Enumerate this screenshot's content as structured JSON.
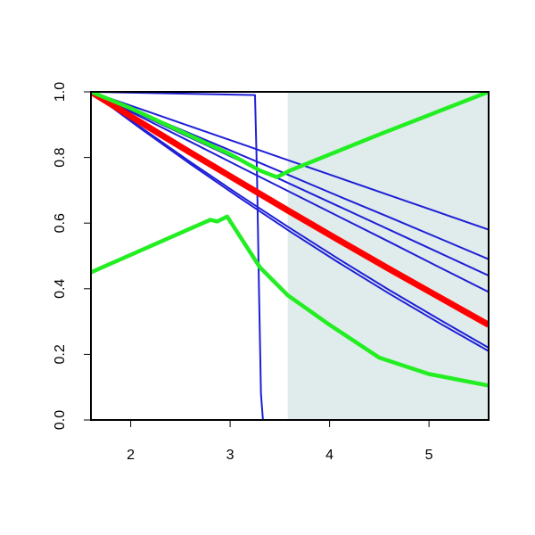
{
  "chart_data": {
    "type": "line",
    "xlim": [
      1.6,
      5.6
    ],
    "ylim": [
      0,
      1
    ],
    "xticks": [
      2,
      3,
      4,
      5
    ],
    "yticks": [
      {
        "value": 0,
        "label": "0.0"
      },
      0.2,
      0.4,
      0.6,
      0.8,
      {
        "value": 1,
        "label": "1.0"
      }
    ],
    "shaded_region": {
      "xlim": [
        3.58,
        5.6
      ],
      "color": "#dfeceb"
    },
    "series": [
      {
        "color": "#1f1fd6",
        "line_width": 2,
        "x": [
          1.6,
          2.1,
          2.6,
          3.1,
          3.6,
          4.1,
          4.6,
          5.1,
          5.6
        ],
        "values": [
          1,
          0.9475,
          0.895,
          0.8425,
          0.79,
          0.7375,
          0.685,
          0.6325,
          0.58
        ]
      },
      {
        "color": "#1f1fd6",
        "line_width": 2,
        "x": [
          1.6,
          2.1,
          2.6,
          3.1,
          3.6,
          4.1,
          4.6,
          5.1,
          5.6
        ],
        "values": [
          1,
          0.936,
          0.873,
          0.809,
          0.745,
          0.681,
          0.618,
          0.554,
          0.49
        ]
      },
      {
        "color": "#1f1fd6",
        "line_width": 2,
        "x": [
          1.6,
          2.1,
          2.6,
          3.1,
          3.6,
          4.1,
          4.6,
          5.1,
          5.6
        ],
        "values": [
          1,
          0.93,
          0.86,
          0.79,
          0.72,
          0.65,
          0.58,
          0.51,
          0.44
        ]
      },
      {
        "color": "#1f1fd6",
        "line_width": 2,
        "x": [
          1.6,
          2.1,
          2.6,
          3.1,
          3.6,
          4.1,
          4.6,
          5.1,
          5.6
        ],
        "values": [
          1,
          0.924,
          0.848,
          0.771,
          0.695,
          0.619,
          0.543,
          0.466,
          0.39
        ]
      },
      {
        "color": "#1f1fd6",
        "line_width": 2,
        "x": [
          1.6,
          2.1,
          2.6,
          3.1,
          3.6,
          4.1,
          4.6,
          5.1,
          5.6
        ],
        "values": [
          1,
          0.892,
          0.786,
          0.684,
          0.585,
          0.489,
          0.396,
          0.307,
          0.22
        ]
      },
      {
        "color": "#1f1fd6",
        "line_width": 2,
        "x": [
          1.6,
          2.1,
          2.6,
          3.1,
          3.6,
          4.1,
          4.6,
          5.1,
          5.6
        ],
        "values": [
          1,
          0.888,
          0.78,
          0.676,
          0.575,
          0.478,
          0.385,
          0.296,
          0.21
        ]
      },
      {
        "color": "#1f1fd6",
        "line_width": 2,
        "x": [
          1.6,
          3.25,
          3.27,
          3.29,
          3.31,
          3.33,
          5.6
        ],
        "values": [
          1,
          0.99,
          0.75,
          0.4,
          0.08,
          0,
          0
        ]
      },
      {
        "color": "#ff0000",
        "line_width": 7,
        "x": [
          1.6,
          2.1,
          2.6,
          3.1,
          3.6,
          4.1,
          4.6,
          5.1,
          5.6
        ],
        "values": [
          1,
          0.907,
          0.815,
          0.725,
          0.635,
          0.547,
          0.46,
          0.375,
          0.29
        ]
      },
      {
        "color": "#22ee22",
        "line_width": 4.5,
        "x": [
          1.6,
          2.0,
          2.5,
          3.0,
          3.3,
          3.47,
          3.6,
          4.5,
          5.6
        ],
        "values": [
          1,
          0.95,
          0.88,
          0.81,
          0.76,
          0.74,
          0.76,
          0.87,
          1.0
        ]
      },
      {
        "color": "#22ee22",
        "line_width": 4.5,
        "x": [
          1.6,
          2.8,
          2.87,
          2.97,
          3.3,
          3.58,
          4.0,
          4.5,
          5.0,
          5.6
        ],
        "values": [
          0.45,
          0.61,
          0.605,
          0.62,
          0.465,
          0.38,
          0.29,
          0.19,
          0.14,
          0.105
        ]
      }
    ]
  }
}
